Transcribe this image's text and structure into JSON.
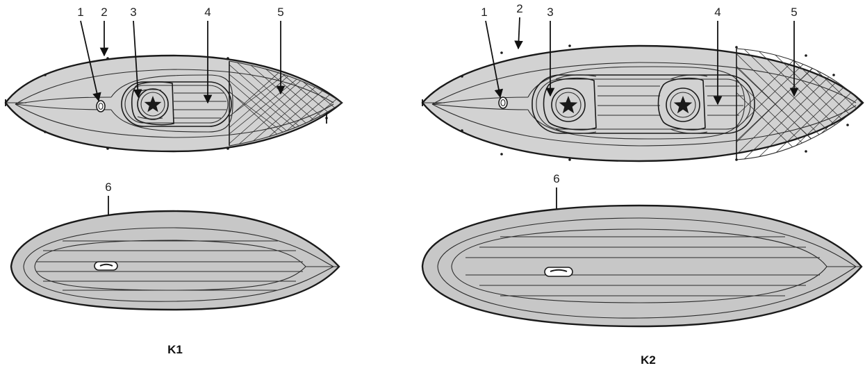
{
  "figures": [
    {
      "caption": "K1",
      "callouts": {
        "c1": "1",
        "c2": "2",
        "c3": "3",
        "c4": "4",
        "c5": "5",
        "c6": "6"
      }
    },
    {
      "caption": "K2",
      "callouts": {
        "c1": "1",
        "c2": "2",
        "c3": "3",
        "c4": "4",
        "c5": "5",
        "c6": "6"
      }
    }
  ],
  "colors": {
    "hull": "#d2d2d2",
    "hull_bottom": "#c7c7c7",
    "outline": "#1a1a1a"
  },
  "icons": [
    "star-icon",
    "drain-valve-icon",
    "skeg-slot-icon"
  ]
}
